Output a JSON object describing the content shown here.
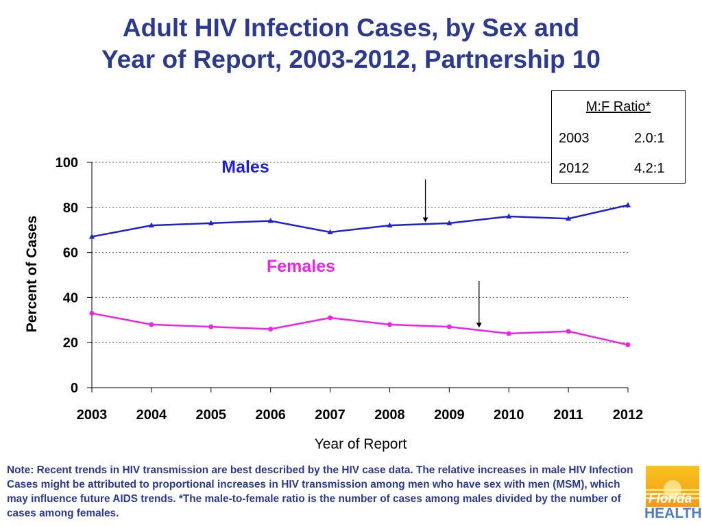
{
  "title": {
    "line1": "Adult HIV Infection Cases, by Sex and",
    "line2": "Year of Report, 2003-2012, Partnership 10"
  },
  "ratio_box": {
    "heading": "M:F Ratio*",
    "rows": [
      {
        "year": "2003",
        "ratio": "2.0:1"
      },
      {
        "year": "2012",
        "ratio": "4.2:1"
      }
    ]
  },
  "chart_data": {
    "type": "line",
    "x": [
      "2003",
      "2004",
      "2005",
      "2006",
      "2007",
      "2008",
      "2009",
      "2010",
      "2011",
      "2012"
    ],
    "series": [
      {
        "name": "Males",
        "values": [
          67,
          72,
          73,
          74,
          69,
          72,
          73,
          76,
          75,
          81
        ],
        "color": "#1f1fd6",
        "marker": "triangle"
      },
      {
        "name": "Females",
        "values": [
          33,
          28,
          27,
          26,
          31,
          28,
          27,
          24,
          25,
          19
        ],
        "color": "#f021e8",
        "marker": "circle"
      }
    ],
    "yticks": [
      "0",
      "20",
      "40",
      "60",
      "80",
      "100"
    ],
    "ylim": [
      0,
      100
    ],
    "xlabel": "Year of Report",
    "ylabel": "Percent of Cases",
    "grid": "horizontal dotted",
    "series_labels_callouts": [
      {
        "text": "Males",
        "arrow_to_x_index": 5.6,
        "arrow_to_y": 74
      },
      {
        "text": "Females",
        "arrow_to_x_index": 6.5,
        "arrow_to_y": 30
      }
    ]
  },
  "note": "Note:  Recent trends in HIV transmission are best described by the HIV case data.  The relative increases in male HIV Infection Cases might be attributed to proportional increases in HIV transmission among men who have sex with men (MSM), which may influence future AIDS trends. *The male-to-female ratio is the number of cases among males divided by the number of cases among females.",
  "logo": {
    "line1": "Florida",
    "line2": "HEALTH"
  }
}
